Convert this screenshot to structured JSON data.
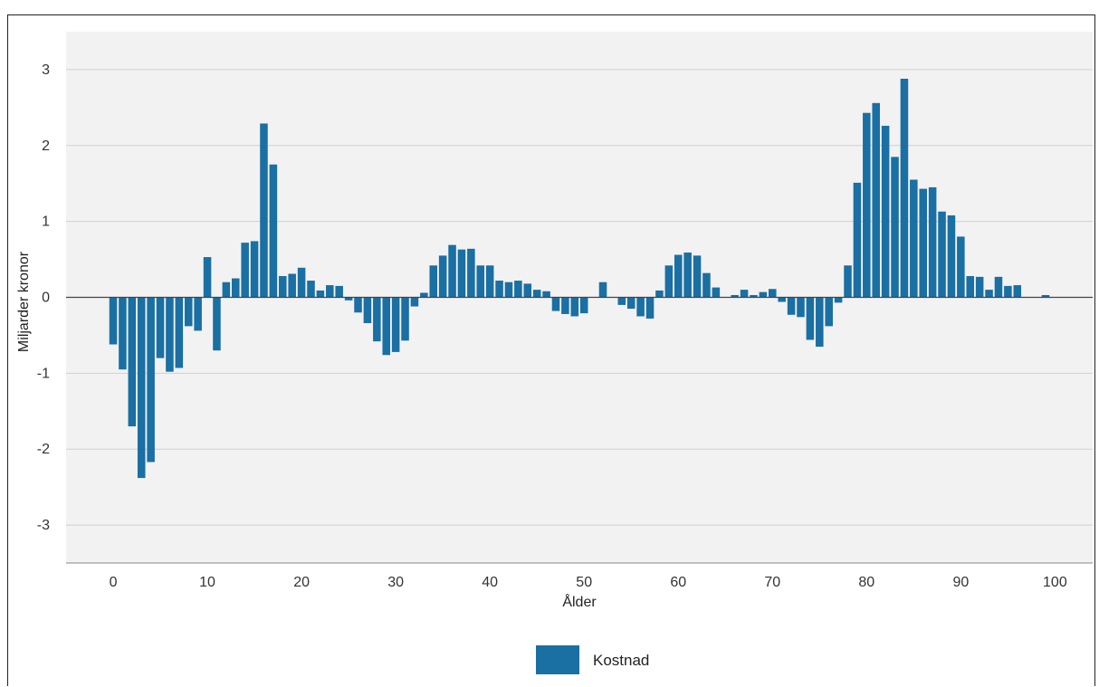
{
  "chart_data": {
    "type": "bar",
    "xlabel": "Ålder",
    "ylabel": "Miljarder kronor",
    "xlim": [
      -5,
      104
    ],
    "ylim": [
      -3.5,
      3.5
    ],
    "x_ticks": [
      0,
      10,
      20,
      30,
      40,
      50,
      60,
      70,
      80,
      90,
      100
    ],
    "y_ticks": [
      -3,
      -2,
      -1,
      0,
      1,
      2,
      3
    ],
    "grid": true,
    "legend_position": "bottom-center",
    "series": [
      {
        "name": "Kostnad",
        "color": "#1a6fa3",
        "x": [
          0,
          1,
          2,
          3,
          4,
          5,
          6,
          7,
          8,
          9,
          10,
          11,
          12,
          13,
          14,
          15,
          16,
          17,
          18,
          19,
          20,
          21,
          22,
          23,
          24,
          25,
          26,
          27,
          28,
          29,
          30,
          31,
          32,
          33,
          34,
          35,
          36,
          37,
          38,
          39,
          40,
          41,
          42,
          43,
          44,
          45,
          46,
          47,
          48,
          49,
          50,
          51,
          52,
          53,
          54,
          55,
          56,
          57,
          58,
          59,
          60,
          61,
          62,
          63,
          64,
          65,
          66,
          67,
          68,
          69,
          70,
          71,
          72,
          73,
          74,
          75,
          76,
          77,
          78,
          79,
          80,
          81,
          82,
          83,
          84,
          85,
          86,
          87,
          88,
          89,
          90,
          91,
          92,
          93,
          94,
          95,
          96,
          97,
          98,
          99,
          100
        ],
        "values": [
          -0.62,
          -0.95,
          -1.7,
          -2.38,
          -2.17,
          -0.8,
          -0.98,
          -0.93,
          -0.38,
          -0.44,
          0.53,
          -0.7,
          0.2,
          0.25,
          0.72,
          0.74,
          2.29,
          1.75,
          0.28,
          0.31,
          0.39,
          0.22,
          0.09,
          0.16,
          0.15,
          -0.04,
          -0.2,
          -0.34,
          -0.58,
          -0.76,
          -0.72,
          -0.57,
          -0.12,
          0.06,
          0.42,
          0.55,
          0.69,
          0.63,
          0.64,
          0.42,
          0.42,
          0.22,
          0.2,
          0.22,
          0.18,
          0.1,
          0.08,
          -0.18,
          -0.22,
          -0.25,
          -0.21,
          0.0,
          0.2,
          0.0,
          -0.1,
          -0.15,
          -0.25,
          -0.28,
          0.09,
          0.42,
          0.56,
          0.59,
          0.55,
          0.32,
          0.13,
          0.0,
          0.03,
          0.1,
          0.03,
          0.07,
          0.11,
          -0.06,
          -0.23,
          -0.26,
          -0.56,
          -0.65,
          -0.38,
          -0.07,
          0.42,
          1.51,
          2.43,
          2.56,
          2.26,
          1.85,
          2.88,
          1.55,
          1.43,
          1.45,
          1.13,
          1.08,
          0.8,
          0.28,
          0.27,
          0.1,
          0.27,
          0.15,
          0.16,
          0.0,
          0.0,
          0.03,
          0.0
        ]
      }
    ]
  }
}
